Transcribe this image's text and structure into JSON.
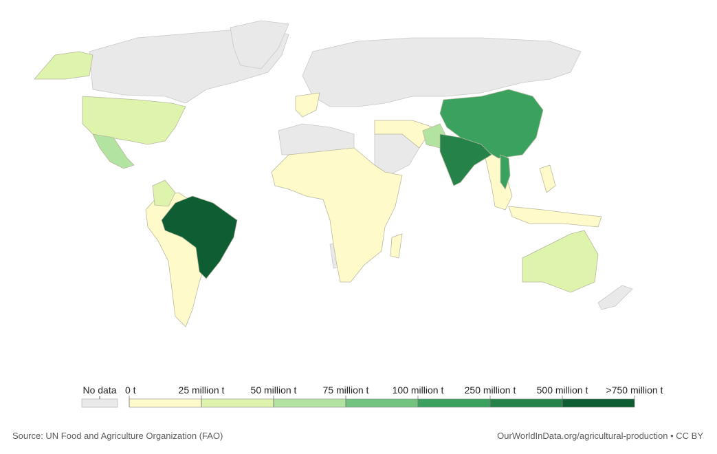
{
  "legend": {
    "no_data_label": "No data",
    "no_data_color": "#e9e9e9",
    "bins": [
      {
        "label": "0 t",
        "color": "#fefac9"
      },
      {
        "label": "25 million t",
        "color": "#def3ac"
      },
      {
        "label": "50 million t",
        "color": "#b3e3a0"
      },
      {
        "label": "75 million t",
        "color": "#72c380"
      },
      {
        "label": "100 million t",
        "color": "#3aa15e"
      },
      {
        "label": "250 million t",
        "color": "#258249"
      },
      {
        "label": "500 million t",
        "color": "#0e5d33"
      }
    ],
    "last_label": ">750 million t"
  },
  "footer": {
    "source": "Source: UN Food and Agriculture Organization (FAO)",
    "credit": "OurWorldInData.org/agricultural-production • CC BY"
  }
}
